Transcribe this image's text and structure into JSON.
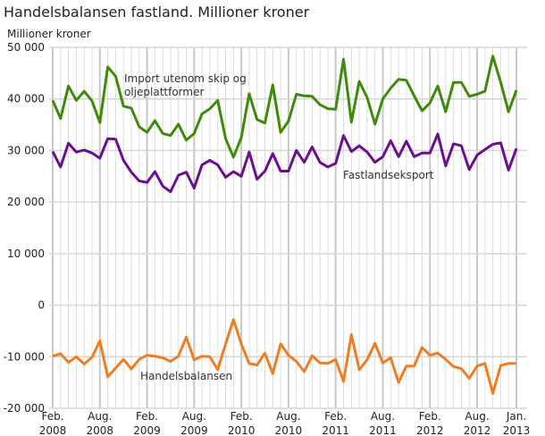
{
  "chart_data": {
    "type": "line",
    "title": "Handelsbalansen fastland. Millioner kroner",
    "ylabel": "Millioner kroner",
    "xlabel": "",
    "ylim": [
      -20000,
      50000
    ],
    "yticks": [
      50000,
      40000,
      30000,
      20000,
      10000,
      0,
      -10000,
      -20000
    ],
    "ytick_labels": [
      "50 000",
      "40 000",
      "30 000",
      "20 000",
      "10 000",
      "0",
      "-10 000",
      "-20 000"
    ],
    "x_start": "2008-02",
    "x_end": "2013-01",
    "xtick_labels": [
      {
        "month": "2008-02",
        "line1": "Feb.",
        "line2": "2008"
      },
      {
        "month": "2008-08",
        "line1": "Aug.",
        "line2": "2008"
      },
      {
        "month": "2009-02",
        "line1": "Feb.",
        "line2": "2009"
      },
      {
        "month": "2009-08",
        "line1": "Aug.",
        "line2": "2009"
      },
      {
        "month": "2010-02",
        "line1": "Feb.",
        "line2": "2010"
      },
      {
        "month": "2010-08",
        "line1": "Aug.",
        "line2": "2010"
      },
      {
        "month": "2011-02",
        "line1": "Feb.",
        "line2": "2011"
      },
      {
        "month": "2011-08",
        "line1": "Aug.",
        "line2": "2011"
      },
      {
        "month": "2012-02",
        "line1": "Feb.",
        "line2": "2012"
      },
      {
        "month": "2012-08",
        "line1": "Aug.",
        "line2": "2012"
      },
      {
        "month": "2013-01",
        "line1": "Jan.",
        "line2": "2013"
      }
    ],
    "grid": true,
    "legend": "inline labels",
    "series": [
      {
        "name": "Import utenom skip og oljeplattformer",
        "label_lines": [
          "Import utenom skip og",
          "oljeplattformer"
        ],
        "color": "#3f8a0a",
        "values": [
          39700,
          36200,
          42500,
          39700,
          41500,
          39600,
          35400,
          46200,
          44400,
          38600,
          38200,
          34600,
          33500,
          35800,
          33300,
          32900,
          35100,
          32000,
          33300,
          37100,
          38100,
          39700,
          32300,
          28700,
          32500,
          41000,
          36000,
          35300,
          42700,
          33500,
          35700,
          40900,
          40600,
          40500,
          38900,
          38100,
          38000,
          47700,
          35500,
          43400,
          40300,
          35100,
          40000,
          42100,
          43800,
          43600,
          40600,
          37700,
          39200,
          42500,
          37500,
          43200,
          43200,
          40500,
          40900,
          41500,
          48300,
          43200,
          37500,
          41700
        ]
      },
      {
        "name": "Fastlandseksport",
        "label_lines": [
          "Fastlandseksport"
        ],
        "color": "#6b0f8f",
        "values": [
          29800,
          26800,
          31400,
          29700,
          30100,
          29500,
          28500,
          32300,
          32200,
          28100,
          25800,
          24100,
          23800,
          25900,
          23100,
          22000,
          25200,
          25800,
          22700,
          27200,
          28100,
          27200,
          24800,
          25900,
          25000,
          29700,
          24400,
          26000,
          29400,
          26000,
          26000,
          30000,
          27700,
          30700,
          27700,
          26800,
          27500,
          32900,
          29800,
          30900,
          29700,
          27700,
          28800,
          31900,
          28800,
          31800,
          28800,
          29500,
          29500,
          33200,
          27000,
          31300,
          30900,
          26300,
          29100,
          30200,
          31200,
          31500,
          26200,
          30400
        ]
      },
      {
        "name": "Handelsbalansen",
        "label_lines": [
          "Handelsbalansen"
        ],
        "color": "#ef7d22",
        "values": [
          -9900,
          -9400,
          -11100,
          -10000,
          -11400,
          -10100,
          -6900,
          -13900,
          -12200,
          -10500,
          -12400,
          -10500,
          -9700,
          -9900,
          -10200,
          -10900,
          -9900,
          -6200,
          -10600,
          -9900,
          -10000,
          -12500,
          -7500,
          -2800,
          -7500,
          -11300,
          -11600,
          -9300,
          -13300,
          -7500,
          -9700,
          -10900,
          -12900,
          -9800,
          -11200,
          -11300,
          -10500,
          -14800,
          -5700,
          -12500,
          -10600,
          -7400,
          -11200,
          -10200,
          -15000,
          -11800,
          -11800,
          -8200,
          -9700,
          -9300,
          -10500,
          -11900,
          -12300,
          -14200,
          -11800,
          -11300,
          -17100,
          -11700,
          -11300,
          -11300
        ]
      }
    ]
  }
}
